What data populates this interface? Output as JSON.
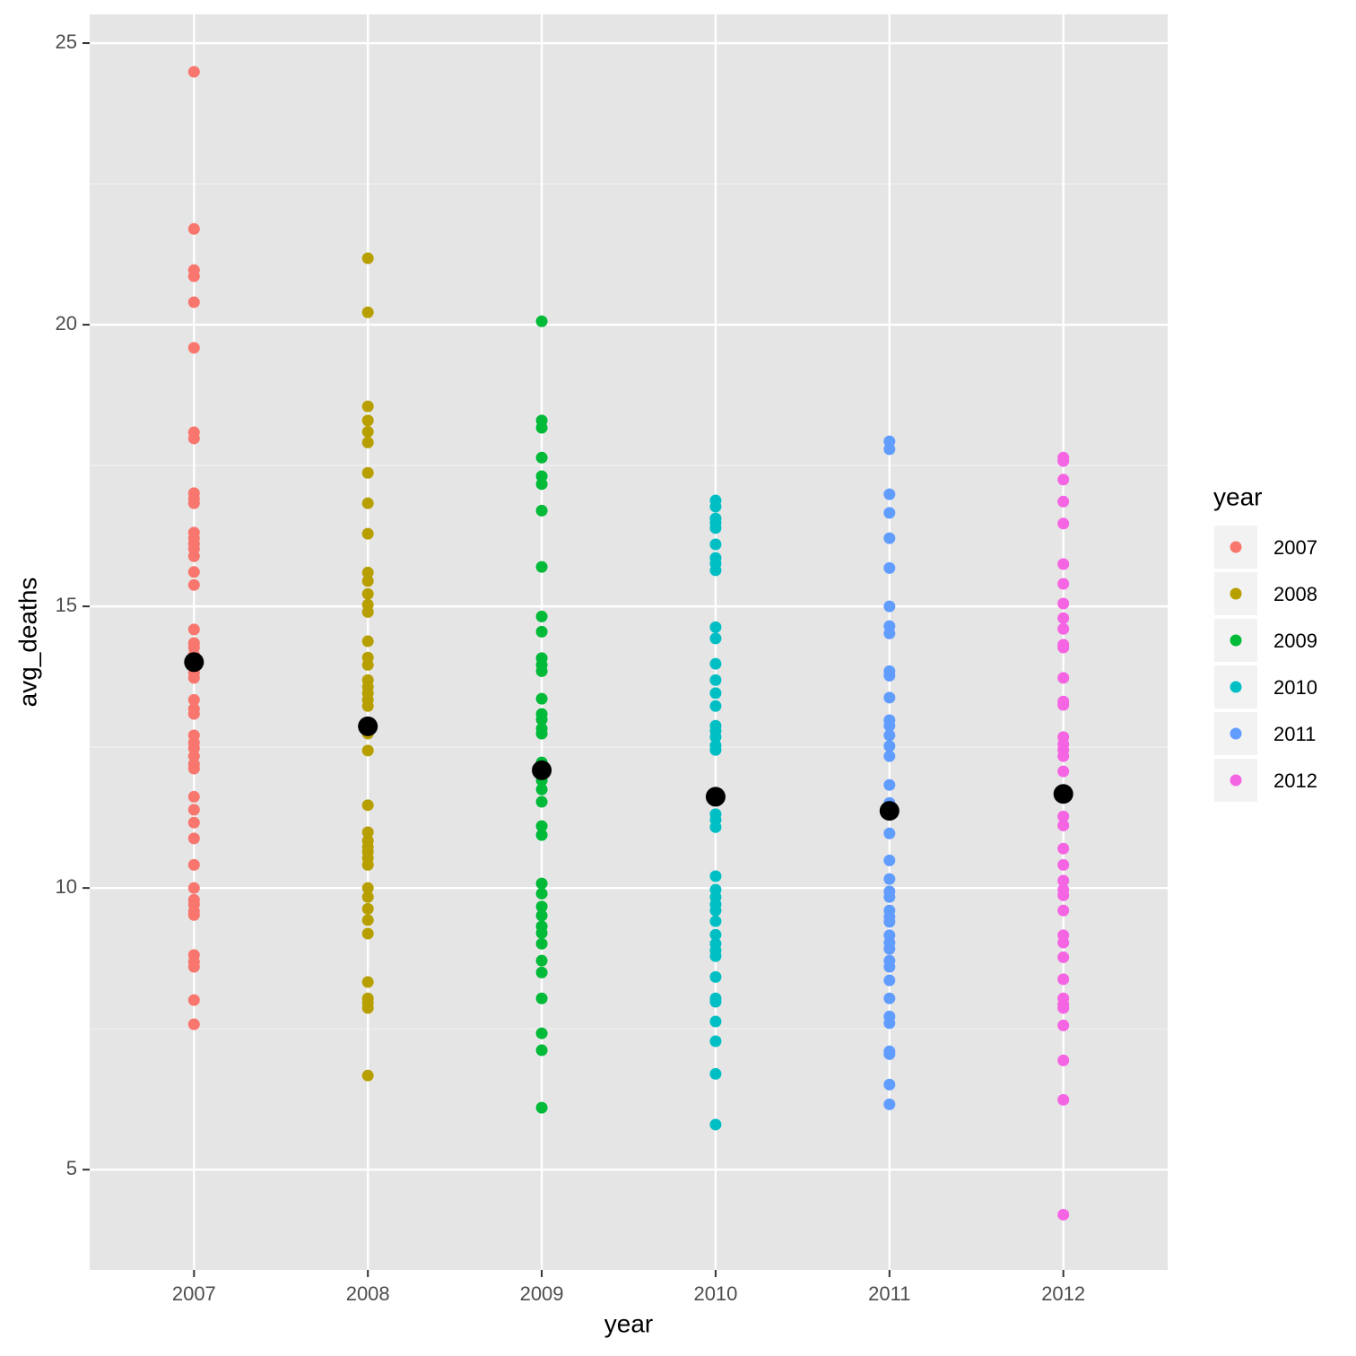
{
  "chart_data": {
    "type": "strip",
    "x_label": "year",
    "y_label": "avg_deaths",
    "legend_title": "year",
    "categories": [
      "2007",
      "2008",
      "2009",
      "2010",
      "2011",
      "2012"
    ],
    "ylim": [
      3.22,
      25.51
    ],
    "yticks": [
      5,
      10,
      15,
      20,
      25
    ],
    "grid": true,
    "legend": "right",
    "mean_color": "#000000",
    "means": [
      14.01,
      12.87,
      12.09,
      11.62,
      11.37,
      11.67
    ],
    "series": [
      {
        "name": "2007",
        "color": "#F8766D",
        "values": [
          24.49,
          21.7,
          20.97,
          20.86,
          20.4,
          19.59,
          18.09,
          17.98,
          17.01,
          16.91,
          16.83,
          16.31,
          16.21,
          16.11,
          16.02,
          15.89,
          15.61,
          15.38,
          14.59,
          14.35,
          14.27,
          14.14,
          14.01,
          13.92,
          13.82,
          13.73,
          13.34,
          13.18,
          13.09,
          12.71,
          12.58,
          12.48,
          12.34,
          12.2,
          12.12,
          11.62,
          11.39,
          11.16,
          10.88,
          10.41,
          10.0,
          9.79,
          9.71,
          9.59,
          9.52,
          8.81,
          8.69,
          8.6,
          8.01,
          7.58
        ]
      },
      {
        "name": "2008",
        "color": "#B79F00",
        "values": [
          21.18,
          20.22,
          18.55,
          18.3,
          18.1,
          17.91,
          17.37,
          16.83,
          16.29,
          15.6,
          15.45,
          15.22,
          15.03,
          14.9,
          14.38,
          14.09,
          13.96,
          13.69,
          13.57,
          13.46,
          13.34,
          13.23,
          12.74,
          12.44,
          11.47,
          10.99,
          10.84,
          10.73,
          10.64,
          10.53,
          10.41,
          10.0,
          9.84,
          9.63,
          9.43,
          9.19,
          8.33,
          8.04,
          7.96,
          7.87,
          6.67
        ]
      },
      {
        "name": "2009",
        "color": "#00BA38",
        "values": [
          20.06,
          18.3,
          18.17,
          17.64,
          17.31,
          17.17,
          16.7,
          15.7,
          14.82,
          14.55,
          14.08,
          13.96,
          13.85,
          13.36,
          13.09,
          12.99,
          12.83,
          12.74,
          12.23,
          11.91,
          11.75,
          11.53,
          11.1,
          10.94,
          10.08,
          9.9,
          9.67,
          9.51,
          9.32,
          9.2,
          9.01,
          8.71,
          8.5,
          8.04,
          7.42,
          7.12,
          6.1
        ]
      },
      {
        "name": "2010",
        "color": "#00BFC4",
        "values": [
          16.88,
          16.77,
          16.56,
          16.48,
          16.39,
          16.1,
          15.86,
          15.76,
          15.64,
          14.63,
          14.43,
          13.98,
          13.69,
          13.46,
          13.23,
          12.88,
          12.79,
          12.68,
          12.53,
          12.45,
          11.31,
          11.21,
          11.08,
          10.21,
          9.97,
          9.84,
          9.71,
          9.6,
          9.41,
          9.17,
          9.01,
          8.89,
          8.79,
          8.42,
          8.04,
          7.98,
          7.63,
          7.28,
          6.7,
          5.8
        ]
      },
      {
        "name": "2011",
        "color": "#619CFF",
        "values": [
          17.93,
          17.79,
          16.99,
          16.66,
          16.21,
          15.68,
          15.0,
          14.65,
          14.52,
          13.85,
          13.77,
          13.38,
          12.98,
          12.88,
          12.71,
          12.52,
          12.34,
          11.83,
          11.51,
          10.97,
          10.49,
          10.16,
          9.94,
          9.84,
          9.6,
          9.49,
          9.4,
          9.16,
          9.03,
          8.92,
          8.71,
          8.6,
          8.36,
          8.04,
          7.72,
          7.6,
          7.1,
          7.05,
          6.51,
          6.16
        ]
      },
      {
        "name": "2012",
        "color": "#F564E3",
        "values": [
          17.64,
          17.58,
          17.25,
          16.86,
          16.47,
          15.75,
          15.4,
          15.05,
          14.79,
          14.6,
          14.32,
          14.27,
          13.73,
          13.31,
          13.25,
          12.68,
          12.55,
          12.45,
          12.34,
          12.07,
          11.27,
          11.11,
          10.7,
          10.41,
          10.13,
          9.97,
          9.87,
          9.6,
          9.16,
          9.03,
          8.77,
          8.38,
          8.04,
          7.93,
          7.87,
          7.56,
          6.94,
          6.24,
          4.2
        ]
      }
    ]
  }
}
